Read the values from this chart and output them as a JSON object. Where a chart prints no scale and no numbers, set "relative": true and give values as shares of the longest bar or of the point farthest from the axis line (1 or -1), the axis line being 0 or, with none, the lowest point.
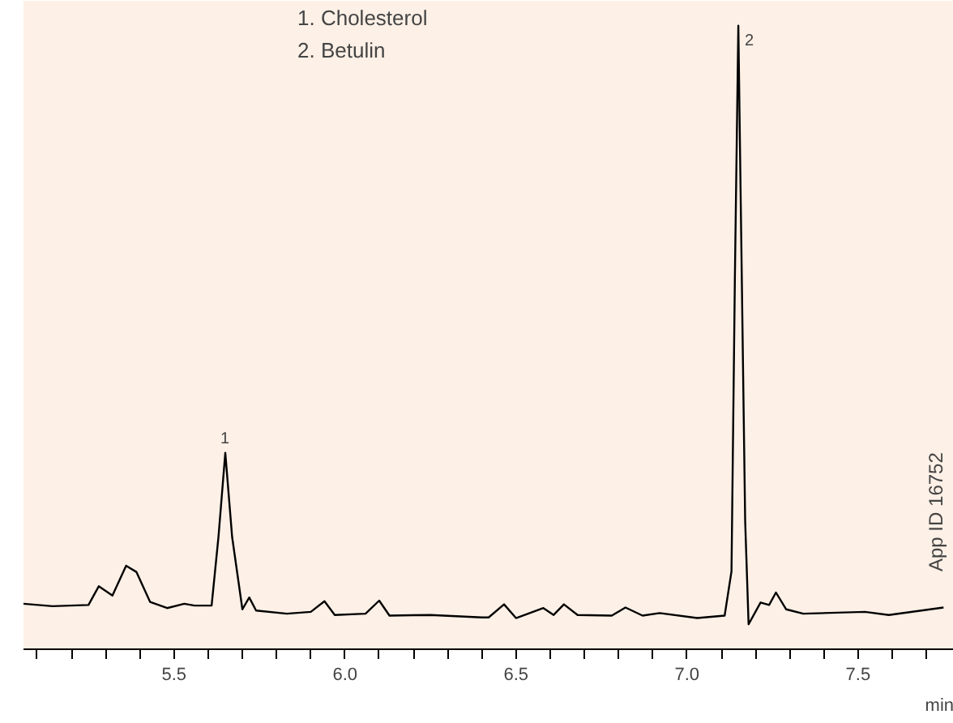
{
  "chart_data": {
    "type": "line",
    "relative": true,
    "xlabel": "min",
    "x": [
      5.06,
      5.145,
      5.25,
      5.28,
      5.32,
      5.36,
      5.39,
      5.43,
      5.48,
      5.53,
      5.56,
      5.61,
      5.63,
      5.65,
      5.67,
      5.7,
      5.72,
      5.74,
      5.83,
      5.9,
      5.94,
      5.97,
      6.06,
      6.1,
      6.13,
      6.25,
      6.4,
      6.42,
      6.465,
      6.5,
      6.58,
      6.61,
      6.64,
      6.68,
      6.78,
      6.82,
      6.87,
      6.92,
      7.03,
      7.11,
      7.13,
      7.14,
      7.15,
      7.16,
      7.17,
      7.18,
      7.215,
      7.24,
      7.26,
      7.29,
      7.34,
      7.52,
      7.59,
      7.75
    ],
    "series": [
      {
        "color": "#000000",
        "values": [
          0.073,
          0.069,
          0.071,
          0.101,
          0.086,
          0.134,
          0.124,
          0.076,
          0.066,
          0.073,
          0.07,
          0.07,
          0.18,
          0.315,
          0.18,
          0.064,
          0.083,
          0.062,
          0.057,
          0.06,
          0.077,
          0.055,
          0.057,
          0.078,
          0.054,
          0.055,
          0.051,
          0.051,
          0.072,
          0.05,
          0.066,
          0.055,
          0.072,
          0.055,
          0.054,
          0.067,
          0.054,
          0.058,
          0.05,
          0.054,
          0.125,
          0.6,
          1.0,
          0.6,
          0.205,
          0.04,
          0.075,
          0.071,
          0.091,
          0.064,
          0.057,
          0.06,
          0.055,
          0.067
        ]
      }
    ],
    "xlim": [
      5.06,
      7.78
    ],
    "xticks": [
      {
        "value": 5.1,
        "label": null
      },
      {
        "value": 5.2,
        "label": null
      },
      {
        "value": 5.3,
        "label": null
      },
      {
        "value": 5.4,
        "label": null
      },
      {
        "value": 5.5,
        "label": "5.5"
      },
      {
        "value": 5.6,
        "label": null
      },
      {
        "value": 5.7,
        "label": null
      },
      {
        "value": 5.8,
        "label": null
      },
      {
        "value": 5.9,
        "label": null
      },
      {
        "value": 6.0,
        "label": "6.0"
      },
      {
        "value": 6.1,
        "label": null
      },
      {
        "value": 6.2,
        "label": null
      },
      {
        "value": 6.3,
        "label": null
      },
      {
        "value": 6.4,
        "label": null
      },
      {
        "value": 6.5,
        "label": "6.5"
      },
      {
        "value": 6.6,
        "label": null
      },
      {
        "value": 6.7,
        "label": null
      },
      {
        "value": 6.8,
        "label": null
      },
      {
        "value": 6.9,
        "label": null
      },
      {
        "value": 7.0,
        "label": "7.0"
      },
      {
        "value": 7.1,
        "label": null
      },
      {
        "value": 7.2,
        "label": null
      },
      {
        "value": 7.3,
        "label": null
      },
      {
        "value": 7.4,
        "label": null
      },
      {
        "value": 7.5,
        "label": "7.5"
      },
      {
        "value": 7.6,
        "label": null
      },
      {
        "value": 7.7,
        "label": null
      }
    ],
    "tick_labels": "x",
    "grid": false,
    "marker": "none",
    "line_style": "solid",
    "annotations": [
      {
        "text": "1",
        "x": 5.65,
        "y": 0.315
      },
      {
        "text": "2",
        "x": 7.15,
        "y": 1.0
      },
      "1. Cholesterol",
      "2. Betulin",
      "App ID 16752"
    ]
  }
}
